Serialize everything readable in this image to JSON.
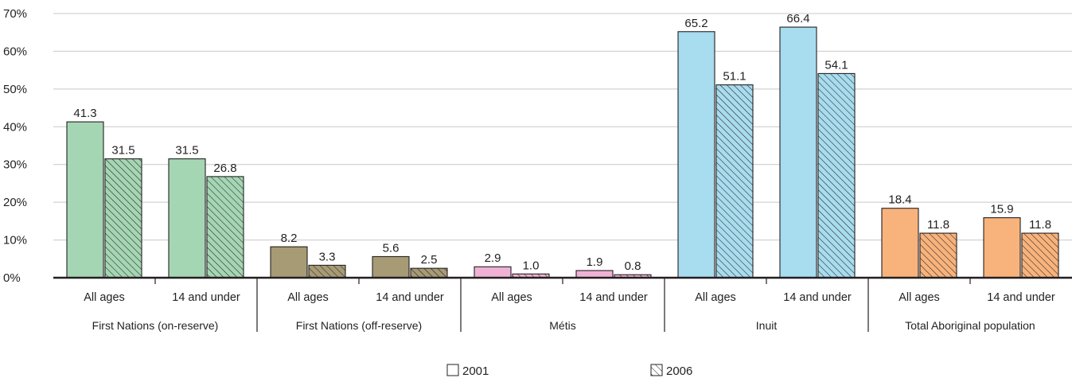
{
  "chart_data": {
    "type": "bar",
    "ylim": [
      0,
      70
    ],
    "yticks": [
      0,
      10,
      20,
      30,
      40,
      50,
      60,
      70
    ],
    "ytick_suffix": "%",
    "grid": true,
    "legend_placement": "bottom-center",
    "series": [
      {
        "name": "2001",
        "pattern": "solid"
      },
      {
        "name": "2006",
        "pattern": "hatched"
      }
    ],
    "groups": [
      {
        "label": "First Nations (on-reserve)",
        "color": "#a5d6b4",
        "subcategories": [
          {
            "label": "All ages",
            "values": [
              41.3,
              31.5
            ],
            "value_labels": [
              "41.3",
              "31.5"
            ]
          },
          {
            "label": "14 and under",
            "values": [
              31.5,
              26.8
            ],
            "value_labels": [
              "31.5",
              "26.8"
            ]
          }
        ]
      },
      {
        "label": "First Nations (off-reserve)",
        "color": "#a79b75",
        "subcategories": [
          {
            "label": "All ages",
            "values": [
              8.2,
              3.3
            ],
            "value_labels": [
              "8.2",
              "3.3"
            ]
          },
          {
            "label": "14 and under",
            "values": [
              5.6,
              2.5
            ],
            "value_labels": [
              "5.6",
              "2.5"
            ]
          }
        ]
      },
      {
        "label": "Métis",
        "color": "#f0b2d4",
        "subcategories": [
          {
            "label": "All ages",
            "values": [
              2.9,
              1.0
            ],
            "value_labels": [
              "2.9",
              "1.0"
            ]
          },
          {
            "label": "14 and under",
            "values": [
              1.9,
              0.8
            ],
            "value_labels": [
              "1.9",
              "0.8"
            ]
          }
        ]
      },
      {
        "label": "Inuit",
        "color": "#a8dcef",
        "subcategories": [
          {
            "label": "All ages",
            "values": [
              65.2,
              51.1
            ],
            "value_labels": [
              "65.2",
              "51.1"
            ]
          },
          {
            "label": "14 and under",
            "values": [
              66.4,
              54.1
            ],
            "value_labels": [
              "66.4",
              "54.1"
            ]
          }
        ]
      },
      {
        "label": "Total Aboriginal population",
        "color": "#f8b37c",
        "subcategories": [
          {
            "label": "All ages",
            "values": [
              18.4,
              11.8
            ],
            "value_labels": [
              "18.4",
              "11.8"
            ]
          },
          {
            "label": "14 and under",
            "values": [
              15.9,
              11.8
            ],
            "value_labels": [
              "15.9",
              "11.8"
            ]
          }
        ]
      }
    ]
  }
}
